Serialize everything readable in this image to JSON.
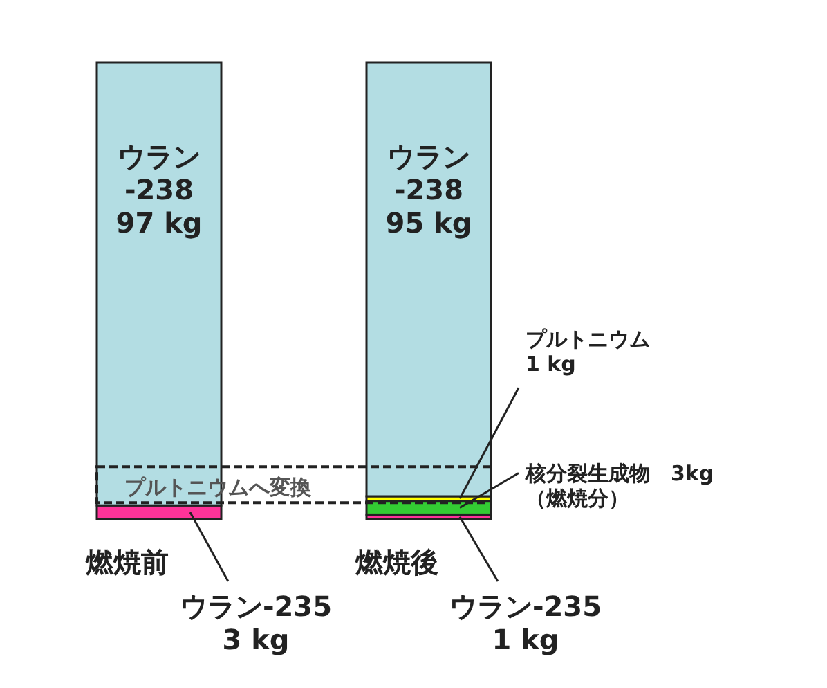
{
  "chart_data": {
    "type": "bar",
    "stacked": true,
    "categories": [
      "燃焼前",
      "燃焼後"
    ],
    "series": [
      {
        "color": "#ff3399",
        "values": [
          3,
          1
        ],
        "value_labels": [
          "ウラン-235\n3 kg",
          "ウラン-235\n1 kg"
        ]
      },
      {
        "color": "#33cc33",
        "values": [
          null,
          3
        ],
        "value_labels": [
          null,
          "核分裂生成物　3kg\n（燃焼分）"
        ]
      },
      {
        "color": "#ffff00",
        "values": [
          null,
          1
        ],
        "value_labels": [
          null,
          "プルトニウム\n1 kg"
        ]
      },
      {
        "color": "#b3dde3",
        "values": [
          97,
          95
        ],
        "value_labels": [
          "ウラン\n-238\n97 kg",
          "ウラン\n-238\n95 kg"
        ]
      }
    ],
    "annotations": [
      "プルトニウムへ変換"
    ]
  }
}
